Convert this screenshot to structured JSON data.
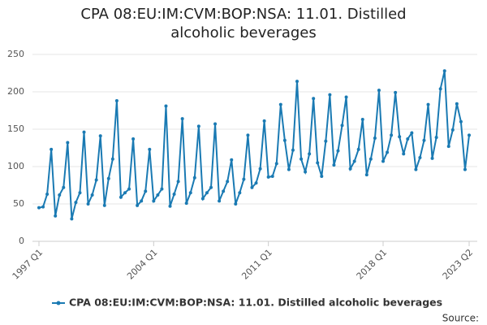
{
  "chart_data": {
    "type": "line",
    "title": "CPA 08:EU:IM:CVM:BOP:NSA: 11.01. Distilled alcoholic beverages",
    "source": "Source:",
    "categories": [
      "1997 Q1",
      null,
      null,
      null,
      null,
      null,
      null,
      null,
      null,
      null,
      null,
      null,
      null,
      null,
      null,
      null,
      null,
      null,
      null,
      null,
      null,
      null,
      null,
      null,
      null,
      null,
      null,
      null,
      "2004 Q1",
      null,
      null,
      null,
      null,
      null,
      null,
      null,
      null,
      null,
      null,
      null,
      null,
      null,
      null,
      null,
      null,
      null,
      null,
      null,
      null,
      null,
      null,
      null,
      null,
      null,
      null,
      null,
      "2011 Q1",
      null,
      null,
      null,
      null,
      null,
      null,
      null,
      null,
      null,
      null,
      null,
      null,
      null,
      null,
      null,
      null,
      null,
      null,
      null,
      null,
      null,
      null,
      null,
      null,
      null,
      null,
      null,
      "2018 Q1",
      null,
      null,
      null,
      null,
      null,
      null,
      null,
      null,
      null,
      null,
      null,
      null,
      null,
      null,
      null,
      null,
      null,
      null,
      null,
      null,
      "2023 Q2"
    ],
    "series": [
      {
        "name": "CPA 08:EU:IM:CVM:BOP:NSA: 11.01. Distilled alcoholic beverages",
        "color": "#1a7ab3",
        "values": [
          45,
          46,
          63,
          123,
          34,
          62,
          72,
          132,
          30,
          52,
          65,
          146,
          50,
          62,
          82,
          141,
          48,
          84,
          110,
          188,
          59,
          65,
          70,
          137,
          48,
          54,
          67,
          123,
          54,
          62,
          70,
          181,
          47,
          63,
          80,
          164,
          51,
          65,
          85,
          154,
          57,
          65,
          72,
          157,
          54,
          67,
          80,
          109,
          50,
          65,
          83,
          142,
          72,
          78,
          97,
          161,
          86,
          87,
          104,
          183,
          135,
          96,
          122,
          214,
          110,
          93,
          117,
          191,
          105,
          87,
          134,
          196,
          102,
          121,
          155,
          193,
          97,
          107,
          123,
          163,
          89,
          110,
          138,
          202,
          107,
          119,
          142,
          199,
          140,
          117,
          137,
          145,
          96,
          112,
          135,
          183,
          111,
          139,
          204,
          228,
          127,
          149,
          184,
          160,
          96,
          142
        ]
      }
    ],
    "ylim": [
      0,
      250
    ],
    "yticks": [
      0,
      50,
      100,
      150,
      200,
      250
    ],
    "grid": true,
    "legend": "bottom"
  }
}
